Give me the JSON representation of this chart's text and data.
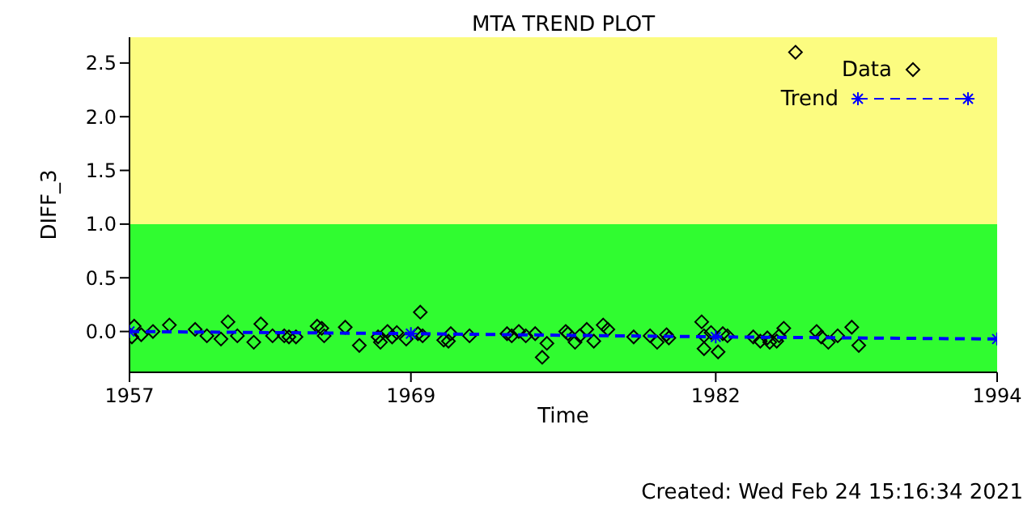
{
  "chart_data": {
    "type": "scatter",
    "title": "MTA TREND PLOT",
    "xlabel": "Time",
    "ylabel": "DIFF_3",
    "annotations": [
      "Created: Wed Feb 24 15:16:34 2021"
    ],
    "xlim": [
      1957,
      1994
    ],
    "xticks": [
      1957,
      1969,
      1982,
      1994
    ],
    "ylim": [
      -0.38,
      2.74
    ],
    "yticks": [
      {
        "value": 0,
        "label": "0.0"
      },
      {
        "value": 0.5,
        "label": "0.5"
      },
      {
        "value": 1,
        "label": "1.0"
      },
      {
        "value": 1.5,
        "label": "1.5"
      },
      {
        "value": 2,
        "label": "2.0"
      },
      {
        "value": 2.5,
        "label": "2.5"
      }
    ],
    "bands": [
      {
        "axis": "y",
        "from": -0.38,
        "to": 1.0,
        "color": "#30fc30"
      },
      {
        "axis": "y",
        "from": 1.0,
        "to": 2.74,
        "color": "#fcfc80"
      }
    ],
    "legend": "top right",
    "marker": "diamond",
    "series": [
      {
        "name": "Data",
        "color": "#000000",
        "x": [
          1957.2,
          1957.1,
          1957.5,
          1958.0,
          1958.7,
          1959.8,
          1960.3,
          1960.9,
          1961.2,
          1961.6,
          1962.3,
          1962.6,
          1963.1,
          1963.6,
          1963.8,
          1964.1,
          1965.0,
          1965.2,
          1965.3,
          1966.2,
          1966.8,
          1967.6,
          1967.7,
          1968.0,
          1968.2,
          1968.4,
          1968.8,
          1969.3,
          1969.4,
          1969.5,
          1970.4,
          1970.6,
          1970.7,
          1971.5,
          1973.1,
          1973.3,
          1973.6,
          1973.9,
          1974.3,
          1974.6,
          1974.8,
          1975.6,
          1975.7,
          1976.0,
          1976.2,
          1976.5,
          1976.8,
          1977.2,
          1977.4,
          1978.5,
          1979.2,
          1979.5,
          1979.9,
          1980.0,
          1981.4,
          1981.5,
          1981.5,
          1981.8,
          1982.1,
          1982.3,
          1982.5,
          1983.6,
          1983.9,
          1984.2,
          1984.3,
          1984.6,
          1984.7,
          1984.9,
          1985.4,
          1986.3,
          1986.5,
          1986.8,
          1987.2,
          1987.8,
          1988.1
        ],
        "values": [
          0.05,
          -0.05,
          -0.03,
          0.0,
          0.06,
          0.02,
          -0.04,
          -0.07,
          0.09,
          -0.04,
          -0.1,
          0.07,
          -0.04,
          -0.04,
          -0.05,
          -0.05,
          0.05,
          0.03,
          -0.04,
          0.04,
          -0.13,
          -0.05,
          -0.1,
          0.0,
          -0.05,
          -0.01,
          -0.07,
          -0.02,
          0.18,
          -0.04,
          -0.08,
          -0.09,
          -0.02,
          -0.04,
          -0.02,
          -0.04,
          0.0,
          -0.04,
          -0.02,
          -0.24,
          -0.11,
          0.0,
          -0.02,
          -0.1,
          -0.04,
          0.02,
          -0.09,
          0.06,
          0.02,
          -0.05,
          -0.04,
          -0.1,
          -0.03,
          -0.06,
          0.09,
          -0.16,
          -0.04,
          -0.01,
          -0.19,
          -0.02,
          -0.04,
          -0.05,
          -0.09,
          -0.06,
          -0.1,
          -0.09,
          -0.04,
          0.03,
          2.6,
          0.0,
          -0.05,
          -0.1,
          -0.04,
          0.04,
          -0.13
        ]
      },
      {
        "name": "Trend",
        "type": "line",
        "color": "#0000ff",
        "marker": "cross",
        "line_style": "dashed",
        "x": [
          1957,
          1969,
          1982,
          1994
        ],
        "values": [
          0.0,
          -0.02,
          -0.05,
          -0.07
        ]
      }
    ]
  }
}
